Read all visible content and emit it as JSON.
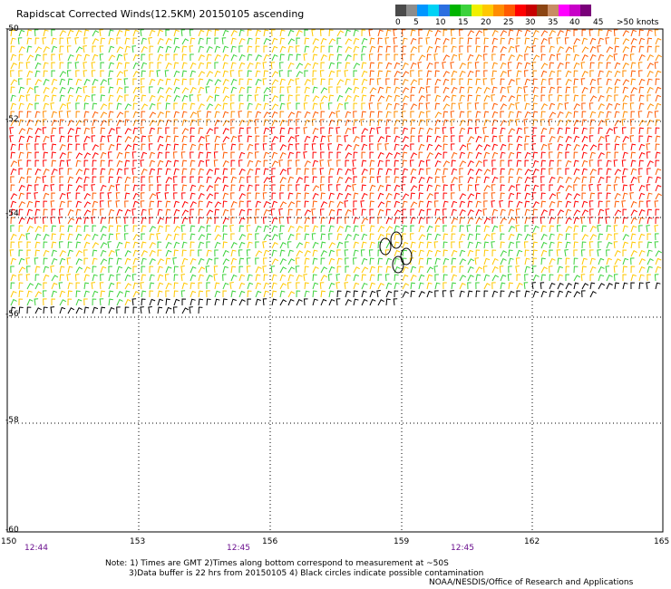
{
  "title": "Rapidscat Corrected Winds(12.5KM) 20150105 ascending",
  "legend": {
    "labels": [
      "0",
      "5",
      "10",
      "15",
      "20",
      "25",
      "30",
      "35",
      "40",
      "45",
      ">50 knots"
    ],
    "colors": [
      "#4a4a4a",
      "#8c8c8c",
      "#0096ff",
      "#00d2f5",
      "#2b6fe0",
      "#00b400",
      "#3cd23c",
      "#f0f000",
      "#ffc800",
      "#ff8c00",
      "#ff5a00",
      "#ff0000",
      "#c80000",
      "#8b4513",
      "#c88c64",
      "#ff00ff",
      "#c800c8",
      "#7a007a"
    ]
  },
  "axes": {
    "lat_labels": [
      "-50",
      "-52",
      "-54",
      "-56",
      "-58",
      "-60"
    ],
    "lon_labels": [
      "150",
      "153",
      "156",
      "159",
      "162",
      "165"
    ],
    "time_labels": [
      "12:44",
      "12:45",
      "12:45"
    ]
  },
  "notes": [
    "Note: 1) Times are GMT 2)Times along bottom correspond to measurement at ~50S",
    "3)Data buffer is 22 hrs from 20150105 4) Black circles indicate possible contamination"
  ],
  "credit": "NOAA/NESDIS/Office of Research and Applications",
  "colors": {
    "grid": "#000000",
    "time_text": "#6a0f8e",
    "high_lat_barbs": "#ffc800",
    "mid_barbs": "#ff5a00",
    "south_barbs": "#ff0000",
    "edge_barbs": "#000000"
  }
}
